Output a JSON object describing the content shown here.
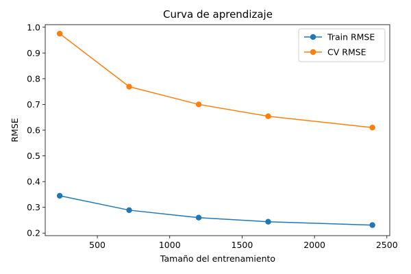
{
  "chart_data": {
    "type": "line",
    "title": "Curva de aprendizaje",
    "xlabel": "Tamaño del entrenamiento",
    "ylabel": "RMSE",
    "xlim": [
      140,
      2520
    ],
    "ylim": [
      0.19,
      1.01
    ],
    "xticks": [
      500,
      1000,
      1500,
      2000,
      2500
    ],
    "xtick_labels": [
      "500",
      "1000",
      "1500",
      "2000",
      "2500"
    ],
    "yticks": [
      0.2,
      0.3,
      0.4,
      0.5,
      0.6,
      0.7,
      0.8,
      0.9,
      1.0
    ],
    "ytick_labels": [
      "0.2",
      "0.3",
      "0.4",
      "0.5",
      "0.6",
      "0.7",
      "0.8",
      "0.9",
      "1.0"
    ],
    "grid": false,
    "legend_position": "top-right",
    "x": [
      240,
      720,
      1200,
      1680,
      2400
    ],
    "series": [
      {
        "name": "Train RMSE",
        "color": "#1f77b4",
        "values": [
          0.345,
          0.289,
          0.26,
          0.244,
          0.231
        ]
      },
      {
        "name": "CV RMSE",
        "color": "#ff7f0e",
        "values": [
          0.975,
          0.769,
          0.7,
          0.654,
          0.61
        ]
      }
    ]
  }
}
